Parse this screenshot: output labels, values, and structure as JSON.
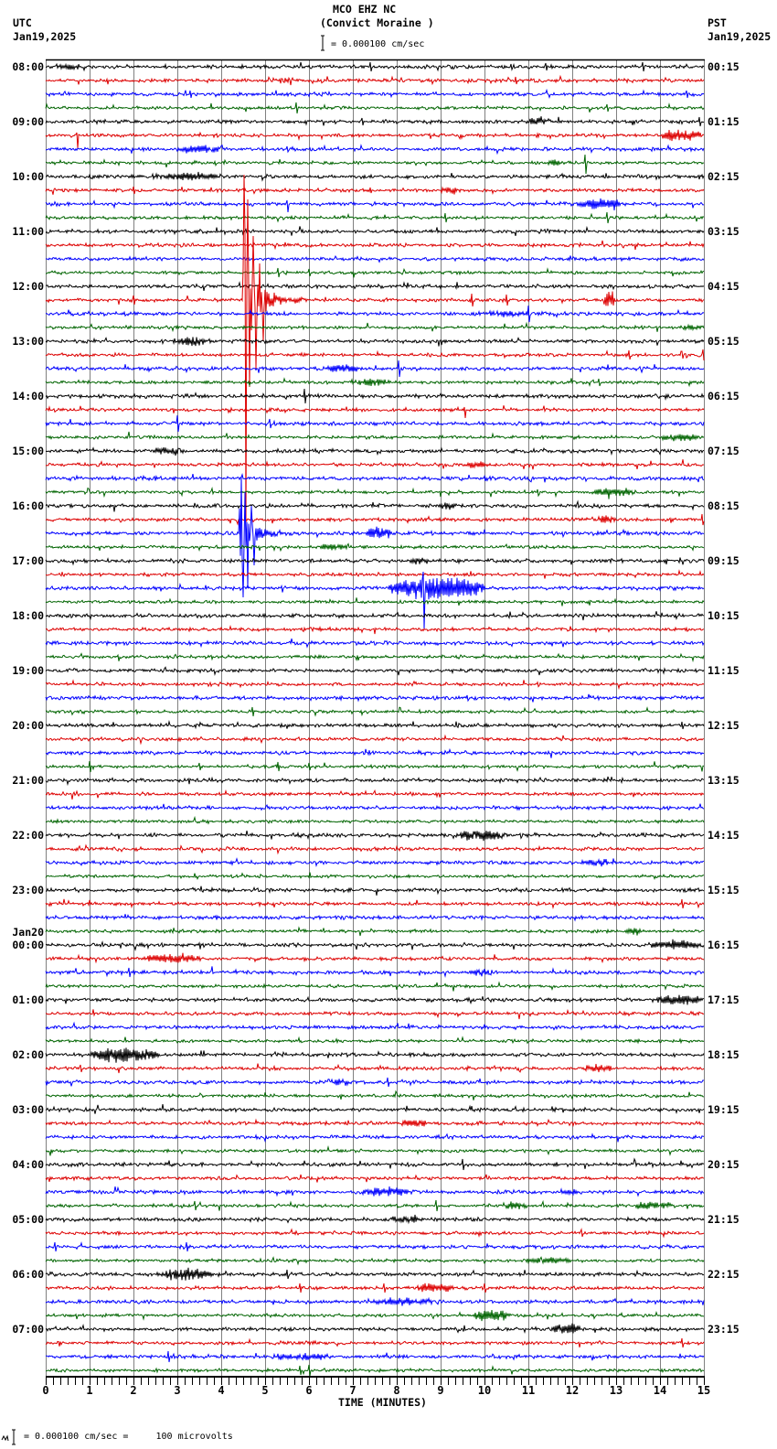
{
  "header": {
    "station": "MCO EHZ NC",
    "location": "(Convict Moraine )",
    "scale_text": "= 0.000100 cm/sec",
    "left_timezone": "UTC",
    "left_date": "Jan19,2025",
    "right_timezone": "PST",
    "right_date": "Jan19,2025"
  },
  "footer": {
    "scale_text": "= 0.000100 cm/sec =     100 microvolts"
  },
  "icons": {
    "scale_bar": "scale-bar-icon",
    "footer_mark": "station-mark-icon"
  },
  "chart_data": {
    "type": "line",
    "title": "MCO EHZ NC",
    "subtitle": "(Convict Moraine )",
    "xlabel": "TIME (MINUTES)",
    "ylabel_left": "UTC",
    "ylabel_right": "PST",
    "xlim": [
      0,
      15
    ],
    "x_ticks": [
      "0",
      "1",
      "2",
      "3",
      "4",
      "5",
      "6",
      "7",
      "8",
      "9",
      "10",
      "11",
      "12",
      "13",
      "14",
      "15"
    ],
    "minor_ticks_per_minute": 6,
    "grid": {
      "vertical": true,
      "every_minutes": 1,
      "color": "#808080"
    },
    "rows_per_hour": 4,
    "minutes_per_row": 15,
    "row_count": 96,
    "series_colors": [
      "#000000",
      "#dd0000",
      "#0000ff",
      "#006400"
    ],
    "utc_labels": [
      "08:00",
      "09:00",
      "10:00",
      "11:00",
      "12:00",
      "13:00",
      "14:00",
      "15:00",
      "16:00",
      "17:00",
      "18:00",
      "19:00",
      "20:00",
      "21:00",
      "22:00",
      "23:00",
      "00:00",
      "01:00",
      "02:00",
      "03:00",
      "04:00",
      "05:00",
      "06:00",
      "07:00"
    ],
    "pst_labels": [
      "00:15",
      "01:15",
      "02:15",
      "03:15",
      "04:15",
      "05:15",
      "06:15",
      "07:15",
      "08:15",
      "09:15",
      "10:15",
      "11:15",
      "12:15",
      "13:15",
      "14:15",
      "15:15",
      "16:15",
      "17:15",
      "18:15",
      "19:15",
      "20:15",
      "21:15",
      "22:15",
      "23:15"
    ],
    "date_change": {
      "hour_index": 16,
      "label": "Jan20"
    },
    "scale": "0.000100 cm/sec = 100 microvolts",
    "events": [
      {
        "row": 0,
        "kind": "spike",
        "t": 7.4,
        "amp": 5
      },
      {
        "row": 0,
        "kind": "spike",
        "t": 10.6,
        "amp": 3
      },
      {
        "row": 0,
        "kind": "spike",
        "t": 11.4,
        "amp": 4
      },
      {
        "row": 0,
        "kind": "spike",
        "t": 13.6,
        "amp": 5
      },
      {
        "row": 0,
        "kind": "burst",
        "t": 0.2,
        "dur": 0.6,
        "amp": 2.5
      },
      {
        "row": 1,
        "kind": "spike",
        "t": 5.4,
        "amp": 4
      },
      {
        "row": 1,
        "kind": "spike",
        "t": 10.7,
        "amp": 4
      },
      {
        "row": 1,
        "kind": "burst",
        "t": 5.3,
        "dur": 0.3,
        "amp": 3
      },
      {
        "row": 2,
        "kind": "spike",
        "t": 3.3,
        "amp": 4
      },
      {
        "row": 2,
        "kind": "spike",
        "t": 14.6,
        "amp": 4
      },
      {
        "row": 3,
        "kind": "spike",
        "t": 5.7,
        "amp": 6
      },
      {
        "row": 3,
        "kind": "spike",
        "t": 12.8,
        "amp": 4
      },
      {
        "row": 4,
        "kind": "spike",
        "t": 7.2,
        "amp": 4
      },
      {
        "row": 4,
        "kind": "burst",
        "t": 11.0,
        "dur": 0.4,
        "amp": 4
      },
      {
        "row": 4,
        "kind": "spike",
        "t": 14.9,
        "amp": 5
      },
      {
        "row": 5,
        "kind": "spike",
        "t": 0.7,
        "up": 3,
        "down": 14
      },
      {
        "row": 5,
        "kind": "burst",
        "t": 14.0,
        "dur": 1.0,
        "amp": 6
      },
      {
        "row": 6,
        "kind": "burst",
        "t": 3.1,
        "dur": 1.0,
        "amp": 4
      },
      {
        "row": 6,
        "kind": "spike",
        "t": 5.5,
        "amp": 3
      },
      {
        "row": 7,
        "kind": "spike",
        "t": 12.3,
        "up": 9,
        "down": 12
      },
      {
        "row": 7,
        "kind": "burst",
        "t": 11.4,
        "dur": 0.4,
        "amp": 3
      },
      {
        "row": 8,
        "kind": "burst",
        "t": 2.4,
        "dur": 1.6,
        "amp": 4
      },
      {
        "row": 9,
        "kind": "spike",
        "t": 2.0,
        "amp": 4
      },
      {
        "row": 9,
        "kind": "spike",
        "t": 7.4,
        "amp": 3
      },
      {
        "row": 9,
        "kind": "burst",
        "t": 9.0,
        "dur": 0.4,
        "amp": 3
      },
      {
        "row": 10,
        "kind": "spike",
        "t": 5.5,
        "up": 4,
        "down": 9
      },
      {
        "row": 10,
        "kind": "burst",
        "t": 12.1,
        "dur": 1.1,
        "amp": 6
      },
      {
        "row": 11,
        "kind": "spike",
        "t": 9.1,
        "amp": 5
      },
      {
        "row": 11,
        "kind": "spike",
        "t": 12.8,
        "amp": 6
      },
      {
        "row": 15,
        "kind": "spike",
        "t": 5.3,
        "amp": 5
      },
      {
        "row": 15,
        "kind": "spike",
        "t": 6.0,
        "amp": 4
      },
      {
        "row": 17,
        "kind": "quake",
        "t": 4.5,
        "dur": 1.6,
        "amp": 95,
        "tau": 0.18,
        "coda": 9,
        "peaks": [
          [
            4.53,
            -137
          ],
          [
            4.56,
            243
          ],
          [
            4.6,
            -110
          ],
          [
            4.65,
            95
          ],
          [
            4.72,
            -70
          ],
          [
            4.8,
            75
          ],
          [
            4.88,
            -40
          ],
          [
            4.95,
            45
          ]
        ]
      },
      {
        "row": 17,
        "kind": "spike",
        "t": 2.0,
        "amp": 5
      },
      {
        "row": 17,
        "kind": "spike",
        "t": 9.7,
        "amp": 7
      },
      {
        "row": 17,
        "kind": "spike",
        "t": 10.5,
        "amp": 6
      },
      {
        "row": 17,
        "kind": "burst",
        "t": 12.7,
        "dur": 0.3,
        "amp": 10
      },
      {
        "row": 18,
        "kind": "spike",
        "t": 11.0,
        "amp": 9
      },
      {
        "row": 18,
        "kind": "burst",
        "t": 10.0,
        "dur": 1.0,
        "amp": 3
      },
      {
        "row": 19,
        "kind": "burst",
        "t": 14.4,
        "dur": 0.6,
        "amp": 3
      },
      {
        "row": 20,
        "kind": "burst",
        "t": 2.9,
        "dur": 0.9,
        "amp": 4
      },
      {
        "row": 21,
        "kind": "spike",
        "t": 13.3,
        "amp": 5
      },
      {
        "row": 21,
        "kind": "spike",
        "t": 14.5,
        "amp": 4
      },
      {
        "row": 21,
        "kind": "spike",
        "t": 14.98,
        "amp": 6
      },
      {
        "row": 22,
        "kind": "burst",
        "t": 6.4,
        "dur": 0.8,
        "amp": 4
      },
      {
        "row": 22,
        "kind": "spike",
        "t": 8.05,
        "amp": 9
      },
      {
        "row": 23,
        "kind": "burst",
        "t": 6.9,
        "dur": 1.0,
        "amp": 4
      },
      {
        "row": 23,
        "kind": "spike",
        "t": 12.6,
        "amp": 4
      },
      {
        "row": 24,
        "kind": "spike",
        "t": 5.9,
        "amp": 8
      },
      {
        "row": 25,
        "kind": "spike",
        "t": 9.55,
        "up": 3,
        "down": 9
      },
      {
        "row": 26,
        "kind": "spike",
        "t": 3.0,
        "amp": 9
      },
      {
        "row": 26,
        "kind": "spike",
        "t": 5.1,
        "amp": 5
      },
      {
        "row": 27,
        "kind": "burst",
        "t": 14.0,
        "dur": 0.9,
        "amp": 4
      },
      {
        "row": 28,
        "kind": "burst",
        "t": 2.4,
        "dur": 0.8,
        "amp": 4
      },
      {
        "row": 29,
        "kind": "burst",
        "t": 9.5,
        "dur": 0.6,
        "amp": 3
      },
      {
        "row": 31,
        "kind": "burst",
        "t": 12.4,
        "dur": 1.1,
        "amp": 4
      },
      {
        "row": 32,
        "kind": "burst",
        "t": 8.9,
        "dur": 0.5,
        "amp": 3
      },
      {
        "row": 33,
        "kind": "burst",
        "t": 12.6,
        "dur": 0.4,
        "amp": 5
      },
      {
        "row": 33,
        "kind": "spike",
        "t": 14.95,
        "amp": 6
      },
      {
        "row": 34,
        "kind": "quake",
        "t": 4.42,
        "dur": 1.3,
        "amp": 40,
        "tau": 0.15,
        "coda": 7,
        "peaks": [
          [
            4.45,
            -62
          ],
          [
            4.5,
            70
          ],
          [
            4.55,
            -45
          ],
          [
            4.6,
            60
          ],
          [
            4.68,
            -30
          ],
          [
            4.75,
            35
          ]
        ]
      },
      {
        "row": 34,
        "kind": "burst",
        "t": 7.3,
        "dur": 0.6,
        "amp": 6
      },
      {
        "row": 35,
        "kind": "burst",
        "t": 6.2,
        "dur": 0.7,
        "amp": 4
      },
      {
        "row": 36,
        "kind": "burst",
        "t": 8.2,
        "dur": 0.7,
        "amp": 3
      },
      {
        "row": 38,
        "kind": "burst",
        "t": 7.8,
        "dur": 2.3,
        "amp": 12
      },
      {
        "row": 38,
        "kind": "spike",
        "t": 8.6,
        "up": 18,
        "down": 45
      },
      {
        "row": 46,
        "kind": "spike",
        "t": 9.6,
        "amp": 3
      },
      {
        "row": 47,
        "kind": "spike",
        "t": 4.7,
        "amp": 5
      },
      {
        "row": 48,
        "kind": "spike",
        "t": 14.5,
        "amp": 4
      },
      {
        "row": 51,
        "kind": "spike",
        "t": 1.0,
        "amp": 6
      },
      {
        "row": 51,
        "kind": "spike",
        "t": 3.5,
        "amp": 4
      },
      {
        "row": 51,
        "kind": "spike",
        "t": 5.3,
        "amp": 5
      },
      {
        "row": 51,
        "kind": "spike",
        "t": 6.0,
        "amp": 4
      },
      {
        "row": 56,
        "kind": "burst",
        "t": 9.3,
        "dur": 1.2,
        "amp": 6
      },
      {
        "row": 58,
        "kind": "burst",
        "t": 12.1,
        "dur": 0.9,
        "amp": 3
      },
      {
        "row": 61,
        "kind": "spike",
        "t": 14.5,
        "amp": 5
      },
      {
        "row": 63,
        "kind": "burst",
        "t": 13.2,
        "dur": 0.4,
        "amp": 4
      },
      {
        "row": 64,
        "kind": "burst",
        "t": 13.7,
        "dur": 1.3,
        "amp": 5
      },
      {
        "row": 65,
        "kind": "burst",
        "t": 2.2,
        "dur": 1.4,
        "amp": 4
      },
      {
        "row": 66,
        "kind": "spike",
        "t": 1.9,
        "amp": 5
      },
      {
        "row": 66,
        "kind": "burst",
        "t": 9.7,
        "dur": 0.5,
        "amp": 3
      },
      {
        "row": 68,
        "kind": "burst",
        "t": 13.9,
        "dur": 1.1,
        "amp": 5
      },
      {
        "row": 72,
        "kind": "burst",
        "t": 1.0,
        "dur": 1.6,
        "amp": 8
      },
      {
        "row": 73,
        "kind": "burst",
        "t": 12.2,
        "dur": 0.7,
        "amp": 4
      },
      {
        "row": 73,
        "kind": "spike",
        "t": 0.8,
        "amp": 4
      },
      {
        "row": 74,
        "kind": "burst",
        "t": 6.4,
        "dur": 0.6,
        "amp": 3
      },
      {
        "row": 74,
        "kind": "spike",
        "t": 7.8,
        "amp": 5
      },
      {
        "row": 77,
        "kind": "burst",
        "t": 8.1,
        "dur": 0.6,
        "amp": 4
      },
      {
        "row": 80,
        "kind": "spike",
        "t": 9.5,
        "amp": 6
      },
      {
        "row": 82,
        "kind": "burst",
        "t": 7.2,
        "dur": 1.1,
        "amp": 5
      },
      {
        "row": 82,
        "kind": "burst",
        "t": 11.7,
        "dur": 0.5,
        "amp": 3
      },
      {
        "row": 83,
        "kind": "spike",
        "t": 3.4,
        "amp": 5
      },
      {
        "row": 83,
        "kind": "spike",
        "t": 8.9,
        "amp": 6
      },
      {
        "row": 83,
        "kind": "burst",
        "t": 10.4,
        "dur": 0.6,
        "amp": 4
      },
      {
        "row": 83,
        "kind": "burst",
        "t": 13.4,
        "dur": 0.9,
        "amp": 4
      },
      {
        "row": 84,
        "kind": "burst",
        "t": 7.7,
        "dur": 0.9,
        "amp": 3
      },
      {
        "row": 85,
        "kind": "spike",
        "t": 12.2,
        "amp": 4
      },
      {
        "row": 86,
        "kind": "spike",
        "t": 0.2,
        "amp": 5
      },
      {
        "row": 86,
        "kind": "spike",
        "t": 3.2,
        "amp": 5
      },
      {
        "row": 87,
        "kind": "burst",
        "t": 10.9,
        "dur": 1.1,
        "amp": 3
      },
      {
        "row": 88,
        "kind": "burst",
        "t": 2.5,
        "dur": 1.3,
        "amp": 6
      },
      {
        "row": 88,
        "kind": "spike",
        "t": 5.5,
        "amp": 5
      },
      {
        "row": 89,
        "kind": "spike",
        "t": 5.8,
        "amp": 5
      },
      {
        "row": 89,
        "kind": "spike",
        "t": 7.7,
        "amp": 5
      },
      {
        "row": 89,
        "kind": "burst",
        "t": 8.4,
        "dur": 0.9,
        "amp": 5
      },
      {
        "row": 89,
        "kind": "spike",
        "t": 10.0,
        "amp": 5
      },
      {
        "row": 90,
        "kind": "burst",
        "t": 7.4,
        "dur": 1.6,
        "amp": 3
      },
      {
        "row": 91,
        "kind": "burst",
        "t": 9.7,
        "dur": 0.9,
        "amp": 6
      },
      {
        "row": 92,
        "kind": "burst",
        "t": 11.5,
        "dur": 0.7,
        "amp": 6
      },
      {
        "row": 93,
        "kind": "spike",
        "t": 14.5,
        "amp": 5
      },
      {
        "row": 94,
        "kind": "spike",
        "t": 2.8,
        "amp": 6
      },
      {
        "row": 94,
        "kind": "burst",
        "t": 5.0,
        "dur": 1.6,
        "amp": 3
      },
      {
        "row": 95,
        "kind": "spike",
        "t": 5.8,
        "amp": 5
      },
      {
        "row": 95,
        "kind": "spike",
        "t": 6.0,
        "amp": 6
      }
    ]
  }
}
